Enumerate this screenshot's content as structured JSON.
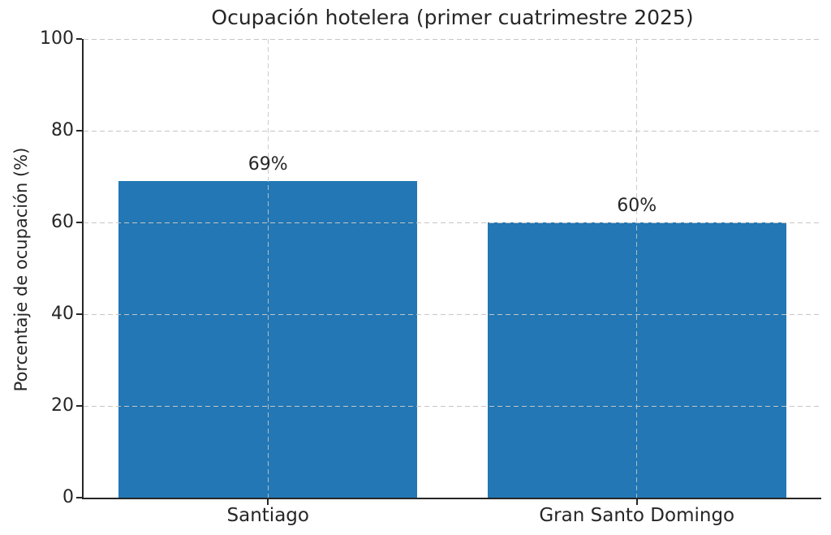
{
  "chart_data": {
    "type": "bar",
    "title": "Ocupación hotelera (primer cuatrimestre 2025)",
    "ylabel": "Porcentaje de ocupación (%)",
    "xlabel": "",
    "categories": [
      "Santiago",
      "Gran Santo Domingo"
    ],
    "values": [
      69,
      60
    ],
    "bar_labels": [
      "69%",
      "60%"
    ],
    "yticks": [
      0,
      20,
      40,
      60,
      80,
      100
    ],
    "ylim": [
      0,
      100
    ],
    "grid": "dashed, horizontal at y-ticks and vertical at category centers, drawn above bars",
    "legend": "none",
    "colors": {
      "bar": "#2277b4",
      "grid": "#c6c6c6",
      "text": "#262626",
      "spine": "#262626",
      "background": "#ffffff"
    }
  }
}
